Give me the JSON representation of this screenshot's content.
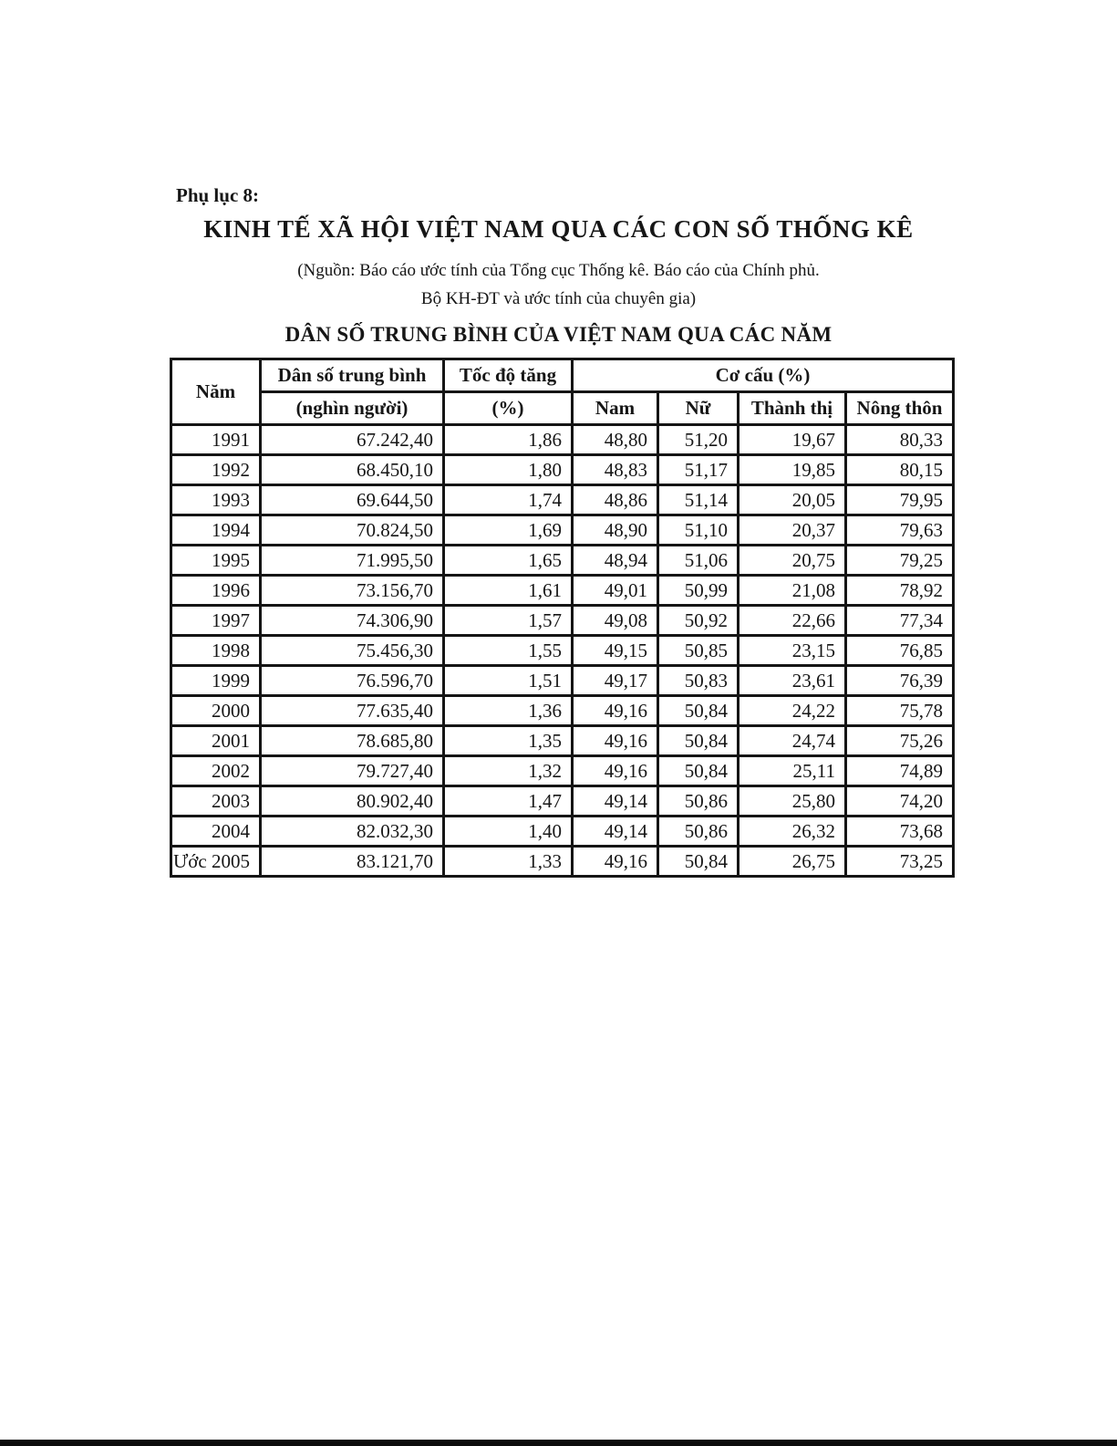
{
  "page": {
    "appendix_label": "Phụ lục 8:",
    "main_title": "KINH TẾ XÃ HỘI VIỆT NAM QUA CÁC CON SỐ THỐNG KÊ",
    "source_line1": "(Nguồn: Báo cáo ước tính của Tổng cục Thống kê. Báo cáo của Chính phủ.",
    "source_line2": "Bộ KH-ĐT và ước tính của chuyên gia)",
    "table_title": "DÂN SỐ TRUNG BÌNH CỦA VIỆT NAM QUA CÁC NĂM"
  },
  "table": {
    "headers": {
      "year": "Năm",
      "population_top": "Dân số trung bình",
      "population_bottom": "(nghìn người)",
      "growth_top": "Tốc độ tăng",
      "growth_bottom": "(%)",
      "structure_group": "Cơ cấu (%)",
      "male": "Nam",
      "female": "Nữ",
      "urban": "Thành thị",
      "rural": "Nông thôn"
    },
    "rows": [
      [
        "1991",
        "67.242,40",
        "1,86",
        "48,80",
        "51,20",
        "19,67",
        "80,33"
      ],
      [
        "1992",
        "68.450,10",
        "1,80",
        "48,83",
        "51,17",
        "19,85",
        "80,15"
      ],
      [
        "1993",
        "69.644,50",
        "1,74",
        "48,86",
        "51,14",
        "20,05",
        "79,95"
      ],
      [
        "1994",
        "70.824,50",
        "1,69",
        "48,90",
        "51,10",
        "20,37",
        "79,63"
      ],
      [
        "1995",
        "71.995,50",
        "1,65",
        "48,94",
        "51,06",
        "20,75",
        "79,25"
      ],
      [
        "1996",
        "73.156,70",
        "1,61",
        "49,01",
        "50,99",
        "21,08",
        "78,92"
      ],
      [
        "1997",
        "74.306,90",
        "1,57",
        "49,08",
        "50,92",
        "22,66",
        "77,34"
      ],
      [
        "1998",
        "75.456,30",
        "1,55",
        "49,15",
        "50,85",
        "23,15",
        "76,85"
      ],
      [
        "1999",
        "76.596,70",
        "1,51",
        "49,17",
        "50,83",
        "23,61",
        "76,39"
      ],
      [
        "2000",
        "77.635,40",
        "1,36",
        "49,16",
        "50,84",
        "24,22",
        "75,78"
      ],
      [
        "2001",
        "78.685,80",
        "1,35",
        "49,16",
        "50,84",
        "24,74",
        "75,26"
      ],
      [
        "2002",
        "79.727,40",
        "1,32",
        "49,16",
        "50,84",
        "25,11",
        "74,89"
      ],
      [
        "2003",
        "80.902,40",
        "1,47",
        "49,14",
        "50,86",
        "25,80",
        "74,20"
      ],
      [
        "2004",
        "82.032,30",
        "1,40",
        "49,14",
        "50,86",
        "26,32",
        "73,68"
      ],
      [
        "Ước 2005",
        "83.121,70",
        "1,33",
        "49,16",
        "50,84",
        "26,75",
        "73,25"
      ]
    ]
  },
  "colors": {
    "ink": "#161616",
    "paper": "#ffffff",
    "scan_bar": "#0c0c0c"
  }
}
